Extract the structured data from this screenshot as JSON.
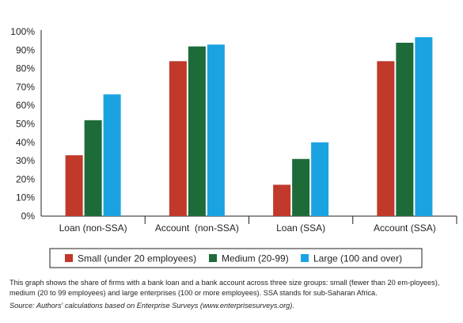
{
  "chart_data": {
    "type": "bar",
    "categories": [
      "Loan (non-SSA)",
      "Account  (non-SSA)",
      "Loan (SSA)",
      "Account (SSA)"
    ],
    "series": [
      {
        "name": "Small (under 20 employees)",
        "color": "#c0392b",
        "values": [
          33,
          84,
          17,
          84
        ]
      },
      {
        "name": "Medium (20-99)",
        "color": "#1e6b3a",
        "values": [
          52,
          92,
          31,
          94
        ]
      },
      {
        "name": "Large (100 and over)",
        "color": "#1aa3e0",
        "values": [
          66,
          93,
          40,
          97
        ]
      }
    ],
    "y_ticks": [
      "0%",
      "10%",
      "20%",
      "30%",
      "40%",
      "50%",
      "60%",
      "70%",
      "80%",
      "90%",
      "100%"
    ],
    "ylim": [
      0,
      100
    ],
    "legend_position": "bottom",
    "grid": false
  },
  "caption": "This graph shows the share of firms with a bank loan and a bank account across three size groups: small (fewer than 20 em-ployees), medium (20 to 99 employees) and large enterprises (100 or more employees). SSA stands for sub-Saharan Africa.",
  "source": "Source: Authors' calculations based on Enterprise Surveys (www.enterprisesurveys.org)."
}
